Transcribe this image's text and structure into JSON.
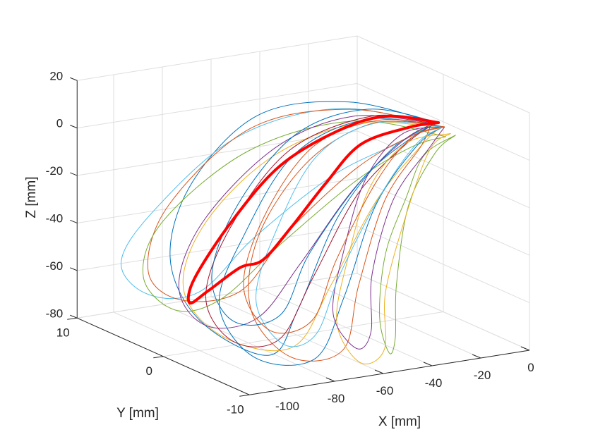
{
  "chart_data": {
    "type": "line3d",
    "title": "",
    "xlabel": "X [mm]",
    "ylabel": "Y [mm]",
    "zlabel": "Z [mm]",
    "xlim": [
      -115,
      0
    ],
    "ylim": [
      -10,
      10
    ],
    "zlim": [
      -80,
      20
    ],
    "xticks": [
      -100,
      -80,
      -60,
      -40,
      -20,
      0
    ],
    "yticks": [
      -10,
      0,
      10
    ],
    "zticks": [
      -80,
      -60,
      -40,
      -20,
      0,
      20
    ],
    "grid": true,
    "colors": [
      "#0072BD",
      "#D95319",
      "#EDB120",
      "#7E2F8E",
      "#77AC30",
      "#4DBEEE",
      "#A2142F"
    ],
    "highlight_color": "#FF0000",
    "series": [
      {
        "color": "#0072BD",
        "points": [
          [
            -3,
            0,
            0
          ],
          [
            -25,
            4,
            6
          ],
          [
            -55,
            6,
            2
          ],
          [
            -82,
            6,
            -22
          ],
          [
            -98,
            4,
            -48
          ],
          [
            -96,
            1,
            -70
          ],
          [
            -82,
            -3,
            -80
          ],
          [
            -70,
            -3,
            -62
          ],
          [
            -50,
            -2,
            -28
          ],
          [
            -25,
            -1,
            -6
          ],
          [
            -3,
            0,
            0
          ]
        ]
      },
      {
        "color": "#4DBEEE",
        "points": [
          [
            -5,
            0,
            0
          ],
          [
            -30,
            4,
            4
          ],
          [
            -60,
            7,
            -8
          ],
          [
            -90,
            8,
            -35
          ],
          [
            -104,
            8,
            -55
          ],
          [
            -100,
            6,
            -66
          ],
          [
            -86,
            4,
            -64
          ],
          [
            -70,
            2,
            -40
          ],
          [
            -45,
            0,
            -15
          ],
          [
            -20,
            -1,
            -3
          ],
          [
            -5,
            0,
            0
          ]
        ]
      },
      {
        "color": "#D95319",
        "points": [
          [
            -4,
            -1,
            0
          ],
          [
            -28,
            3,
            5
          ],
          [
            -58,
            6,
            -3
          ],
          [
            -88,
            7,
            -32
          ],
          [
            -100,
            6,
            -56
          ],
          [
            -94,
            4,
            -66
          ],
          [
            -80,
            1,
            -60
          ],
          [
            -64,
            0,
            -36
          ],
          [
            -40,
            -1,
            -12
          ],
          [
            -18,
            -1,
            -2
          ],
          [
            -4,
            -1,
            0
          ]
        ]
      },
      {
        "color": "#77AC30",
        "points": [
          [
            -6,
            -2,
            -2
          ],
          [
            -30,
            2,
            2
          ],
          [
            -62,
            5,
            -10
          ],
          [
            -90,
            7,
            -38
          ],
          [
            -102,
            6,
            -58
          ],
          [
            -96,
            4,
            -70
          ],
          [
            -84,
            2,
            -64
          ],
          [
            -66,
            0,
            -40
          ],
          [
            -42,
            -2,
            -14
          ],
          [
            -20,
            -2,
            -4
          ],
          [
            -6,
            -2,
            -2
          ]
        ]
      },
      {
        "color": "#EDB120",
        "points": [
          [
            -5,
            -1,
            0
          ],
          [
            -32,
            1,
            3
          ],
          [
            -60,
            3,
            -10
          ],
          [
            -84,
            4,
            -36
          ],
          [
            -96,
            3,
            -60
          ],
          [
            -90,
            0,
            -76
          ],
          [
            -76,
            -4,
            -76
          ],
          [
            -60,
            -4,
            -52
          ],
          [
            -38,
            -3,
            -22
          ],
          [
            -16,
            -2,
            -4
          ],
          [
            -5,
            -1,
            0
          ]
        ]
      },
      {
        "color": "#7E2F8E",
        "points": [
          [
            -4,
            0,
            0
          ],
          [
            -30,
            2,
            4
          ],
          [
            -58,
            3,
            -6
          ],
          [
            -84,
            4,
            -34
          ],
          [
            -98,
            3,
            -58
          ],
          [
            -94,
            1,
            -72
          ],
          [
            -80,
            -1,
            -68
          ],
          [
            -66,
            -2,
            -46
          ],
          [
            -44,
            -2,
            -18
          ],
          [
            -20,
            -1,
            -3
          ],
          [
            -4,
            0,
            0
          ]
        ]
      },
      {
        "color": "#A2142F",
        "points": [
          [
            -3,
            0,
            0
          ],
          [
            -26,
            1,
            5
          ],
          [
            -56,
            2,
            -6
          ],
          [
            -80,
            2,
            -34
          ],
          [
            -94,
            1,
            -60
          ],
          [
            -90,
            -1,
            -76
          ],
          [
            -78,
            -3,
            -74
          ],
          [
            -64,
            -3,
            -50
          ],
          [
            -42,
            -2,
            -20
          ],
          [
            -18,
            -1,
            -4
          ],
          [
            -3,
            0,
            0
          ]
        ]
      },
      {
        "color": "#0072BD",
        "points": [
          [
            -4,
            -1,
            0
          ],
          [
            -28,
            1,
            4
          ],
          [
            -54,
            2,
            -8
          ],
          [
            -78,
            1,
            -36
          ],
          [
            -92,
            0,
            -62
          ],
          [
            -88,
            -3,
            -80
          ],
          [
            -74,
            -6,
            -78
          ],
          [
            -62,
            -6,
            -54
          ],
          [
            -42,
            -4,
            -22
          ],
          [
            -18,
            -2,
            -4
          ],
          [
            -4,
            -1,
            0
          ]
        ]
      },
      {
        "color": "#D95319",
        "points": [
          [
            -5,
            0,
            0
          ],
          [
            -30,
            0,
            4
          ],
          [
            -56,
            0,
            -8
          ],
          [
            -76,
            0,
            -36
          ],
          [
            -86,
            -2,
            -62
          ],
          [
            -80,
            -5,
            -78
          ],
          [
            -66,
            -7,
            -74
          ],
          [
            -56,
            -6,
            -50
          ],
          [
            -38,
            -4,
            -20
          ],
          [
            -16,
            -2,
            -4
          ],
          [
            -5,
            0,
            0
          ]
        ]
      },
      {
        "color": "#77AC30",
        "points": [
          [
            -2,
            -2,
            -2
          ],
          [
            -22,
            -4,
            -4
          ],
          [
            -40,
            -7,
            -14
          ],
          [
            -52,
            -8,
            -34
          ],
          [
            -58,
            -9,
            -58
          ],
          [
            -54,
            -9,
            -74
          ],
          [
            -48,
            -8,
            -70
          ],
          [
            -44,
            -7,
            -50
          ],
          [
            -32,
            -5,
            -22
          ],
          [
            -14,
            -3,
            -6
          ],
          [
            -2,
            -2,
            -2
          ]
        ]
      },
      {
        "color": "#EDB120",
        "points": [
          [
            -4,
            -2,
            -1
          ],
          [
            -26,
            -3,
            0
          ],
          [
            -48,
            -5,
            -12
          ],
          [
            -64,
            -7,
            -36
          ],
          [
            -72,
            -8,
            -60
          ],
          [
            -66,
            -9,
            -76
          ],
          [
            -56,
            -9,
            -72
          ],
          [
            -52,
            -8,
            -50
          ],
          [
            -36,
            -6,
            -22
          ],
          [
            -16,
            -3,
            -4
          ],
          [
            -4,
            -2,
            -1
          ]
        ]
      },
      {
        "color": "#7E2F8E",
        "points": [
          [
            -3,
            -1,
            0
          ],
          [
            -24,
            -2,
            2
          ],
          [
            -46,
            -4,
            -10
          ],
          [
            -62,
            -6,
            -34
          ],
          [
            -70,
            -7,
            -58
          ],
          [
            -64,
            -8,
            -72
          ],
          [
            -58,
            -8,
            -66
          ],
          [
            -54,
            -7,
            -44
          ],
          [
            -38,
            -5,
            -18
          ],
          [
            -16,
            -3,
            -3
          ],
          [
            -3,
            -1,
            0
          ]
        ]
      },
      {
        "color": "#4DBEEE",
        "points": [
          [
            -4,
            -1,
            0
          ],
          [
            -28,
            0,
            4
          ],
          [
            -52,
            0,
            -6
          ],
          [
            -72,
            -1,
            -32
          ],
          [
            -84,
            -2,
            -58
          ],
          [
            -80,
            -4,
            -74
          ],
          [
            -70,
            -5,
            -70
          ],
          [
            -60,
            -5,
            -46
          ],
          [
            -40,
            -4,
            -18
          ],
          [
            -18,
            -2,
            -3
          ],
          [
            -4,
            -1,
            0
          ]
        ]
      },
      {
        "color": "#0072BD",
        "points": [
          [
            -2,
            0,
            0
          ],
          [
            -24,
            2,
            6
          ],
          [
            -50,
            3,
            -2
          ],
          [
            -74,
            3,
            -28
          ],
          [
            -88,
            2,
            -54
          ],
          [
            -86,
            0,
            -70
          ],
          [
            -74,
            -2,
            -66
          ],
          [
            -62,
            -2,
            -42
          ],
          [
            -40,
            -2,
            -14
          ],
          [
            -16,
            -1,
            -2
          ],
          [
            -2,
            0,
            0
          ]
        ]
      },
      {
        "color": "#D95319",
        "points": [
          [
            -3,
            -1,
            0
          ],
          [
            -26,
            0,
            5
          ],
          [
            -50,
            1,
            -4
          ],
          [
            -70,
            1,
            -30
          ],
          [
            -82,
            0,
            -56
          ],
          [
            -78,
            -2,
            -72
          ],
          [
            -68,
            -4,
            -66
          ],
          [
            -58,
            -4,
            -42
          ],
          [
            -38,
            -3,
            -14
          ],
          [
            -16,
            -1,
            -2
          ],
          [
            -3,
            -1,
            0
          ]
        ]
      }
    ],
    "highlight": {
      "color": "#FF0000",
      "points": [
        [
          -2,
          0,
          0
        ],
        [
          -20,
          1,
          4
        ],
        [
          -40,
          1,
          1
        ],
        [
          -60,
          2,
          -12
        ],
        [
          -76,
          3,
          -34
        ],
        [
          -88,
          4,
          -58
        ],
        [
          -90,
          4,
          -68
        ],
        [
          -86,
          3,
          -62
        ],
        [
          -80,
          1,
          -50
        ],
        [
          -74,
          0,
          -46
        ],
        [
          -66,
          -1,
          -32
        ],
        [
          -52,
          -1,
          -16
        ],
        [
          -34,
          0,
          -4
        ],
        [
          -14,
          0,
          0
        ],
        [
          -2,
          0,
          0
        ]
      ]
    }
  }
}
